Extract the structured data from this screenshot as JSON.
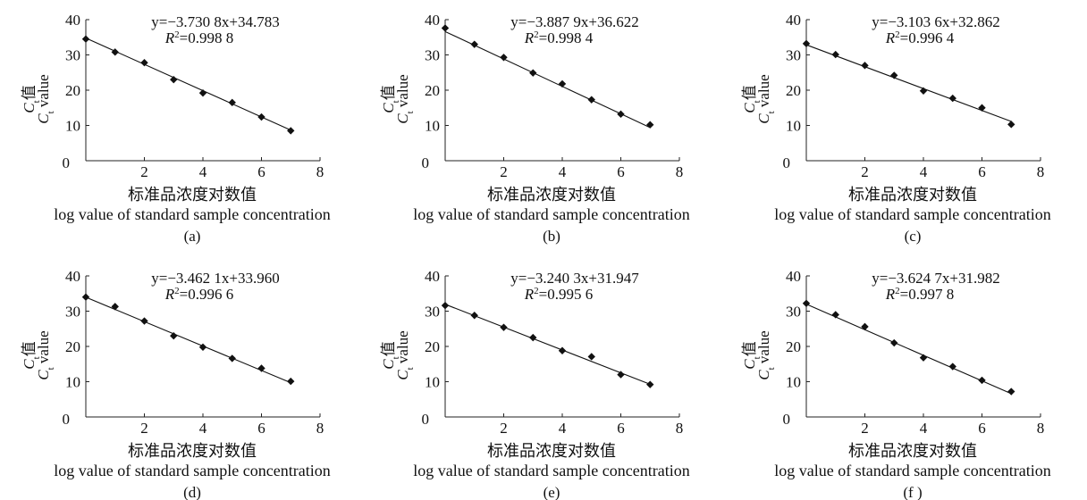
{
  "chart_data": [
    {
      "type": "scatter",
      "panel_label": "(a)",
      "equation": "y=−3.730 8x+34.783",
      "r2_value": "=0.998 8",
      "ylabel_cn": "值",
      "ylabel_en": "value",
      "ylabel_symbol": "C",
      "ylabel_sub": "t",
      "xlabel_cn": "标准品浓度对数值",
      "xlabel_en": "log value of standard sample concentration",
      "xlim": [
        0,
        8
      ],
      "ylim": [
        0,
        40
      ],
      "xticks": [
        "0",
        "2",
        "4",
        "6",
        "8"
      ],
      "yticks": [
        "10",
        "20",
        "30",
        "40"
      ],
      "points": {
        "x": [
          0,
          1,
          2,
          3,
          4,
          5,
          6,
          7
        ],
        "y": [
          34.5,
          30.8,
          27.8,
          23.0,
          19.2,
          16.5,
          12.4,
          8.5
        ]
      },
      "fit": {
        "slope": -3.7308,
        "intercept": 34.783
      }
    },
    {
      "type": "scatter",
      "panel_label": "(b)",
      "equation": "y=−3.887 9x+36.622",
      "r2_value": "=0.998 4",
      "ylabel_cn": "值",
      "ylabel_en": "value",
      "ylabel_symbol": "C",
      "ylabel_sub": "t",
      "xlabel_cn": "标准品浓度对数值",
      "xlabel_en": "log value of standard sample concentration",
      "xlim": [
        0,
        8
      ],
      "ylim": [
        0,
        40
      ],
      "xticks": [
        "0",
        "2",
        "4",
        "6",
        "8"
      ],
      "yticks": [
        "10",
        "20",
        "30",
        "40"
      ],
      "points": {
        "x": [
          0,
          1,
          2,
          3,
          4,
          5,
          6,
          7
        ],
        "y": [
          37.6,
          33.0,
          29.3,
          24.9,
          21.8,
          17.3,
          13.2,
          10.2
        ]
      },
      "fit": {
        "slope": -3.8879,
        "intercept": 36.622
      }
    },
    {
      "type": "scatter",
      "panel_label": "(c)",
      "equation": "y=−3.103 6x+32.862",
      "r2_value": "=0.996 4",
      "ylabel_cn": "值",
      "ylabel_en": "value",
      "ylabel_symbol": "C",
      "ylabel_sub": "t",
      "xlabel_cn": "标准品浓度对数值",
      "xlabel_en": "log value of standard sample concentration",
      "xlim": [
        0,
        8
      ],
      "ylim": [
        0,
        40
      ],
      "xticks": [
        "0",
        "2",
        "4",
        "6",
        "8"
      ],
      "yticks": [
        "10",
        "20",
        "30",
        "40"
      ],
      "points": {
        "x": [
          0,
          1,
          2,
          3,
          4,
          5,
          6,
          7
        ],
        "y": [
          33.2,
          30.1,
          27.0,
          24.2,
          19.8,
          17.7,
          15.0,
          10.3
        ]
      },
      "fit": {
        "slope": -3.1036,
        "intercept": 32.862
      }
    },
    {
      "type": "scatter",
      "panel_label": "(d)",
      "equation": "y=−3.462 1x+33.960",
      "r2_value": "=0.996 6",
      "ylabel_cn": "值",
      "ylabel_en": "value",
      "ylabel_symbol": "C",
      "ylabel_sub": "t",
      "xlabel_cn": "标准品浓度对数值",
      "xlabel_en": "log value of standard sample concentration",
      "xlim": [
        0,
        8
      ],
      "ylim": [
        0,
        40
      ],
      "xticks": [
        "0",
        "2",
        "4",
        "6",
        "8"
      ],
      "yticks": [
        "10",
        "20",
        "30",
        "40"
      ],
      "points": {
        "x": [
          0,
          1,
          2,
          3,
          4,
          5,
          6,
          7
        ],
        "y": [
          34.0,
          31.3,
          27.2,
          23.0,
          19.8,
          16.6,
          13.8,
          10.1
        ]
      },
      "fit": {
        "slope": -3.4621,
        "intercept": 33.96
      }
    },
    {
      "type": "scatter",
      "panel_label": "(e)",
      "equation": "y=−3.240 3x+31.947",
      "r2_value": "=0.995 6",
      "ylabel_cn": "值",
      "ylabel_en": "value",
      "ylabel_symbol": "C",
      "ylabel_sub": "t",
      "xlabel_cn": "标准品浓度对数值",
      "xlabel_en": "log value of standard sample concentration",
      "xlim": [
        0,
        8
      ],
      "ylim": [
        0,
        40
      ],
      "xticks": [
        "0",
        "2",
        "4",
        "6",
        "8"
      ],
      "yticks": [
        "10",
        "20",
        "30",
        "40"
      ],
      "points": {
        "x": [
          0,
          1,
          2,
          3,
          4,
          5,
          6,
          7
        ],
        "y": [
          31.6,
          28.8,
          25.4,
          22.5,
          18.8,
          17.1,
          12.0,
          9.2
        ]
      },
      "fit": {
        "slope": -3.2403,
        "intercept": 31.947
      }
    },
    {
      "type": "scatter",
      "panel_label": "(f )",
      "equation": "y=−3.624 7x+31.982",
      "r2_value": "=0.997 8",
      "ylabel_cn": "值",
      "ylabel_en": "value",
      "ylabel_symbol": "C",
      "ylabel_sub": "t",
      "xlabel_cn": "标准品浓度对数值",
      "xlabel_en": "log value of standard sample concentration",
      "xlim": [
        0,
        8
      ],
      "ylim": [
        0,
        40
      ],
      "xticks": [
        "0",
        "2",
        "4",
        "6",
        "8"
      ],
      "yticks": [
        "10",
        "20",
        "30",
        "40"
      ],
      "points": {
        "x": [
          0,
          1,
          2,
          3,
          4,
          5,
          6,
          7
        ],
        "y": [
          32.2,
          29.0,
          25.6,
          21.0,
          16.8,
          14.3,
          10.4,
          7.2
        ]
      },
      "fit": {
        "slope": -3.6247,
        "intercept": 31.982
      }
    }
  ]
}
